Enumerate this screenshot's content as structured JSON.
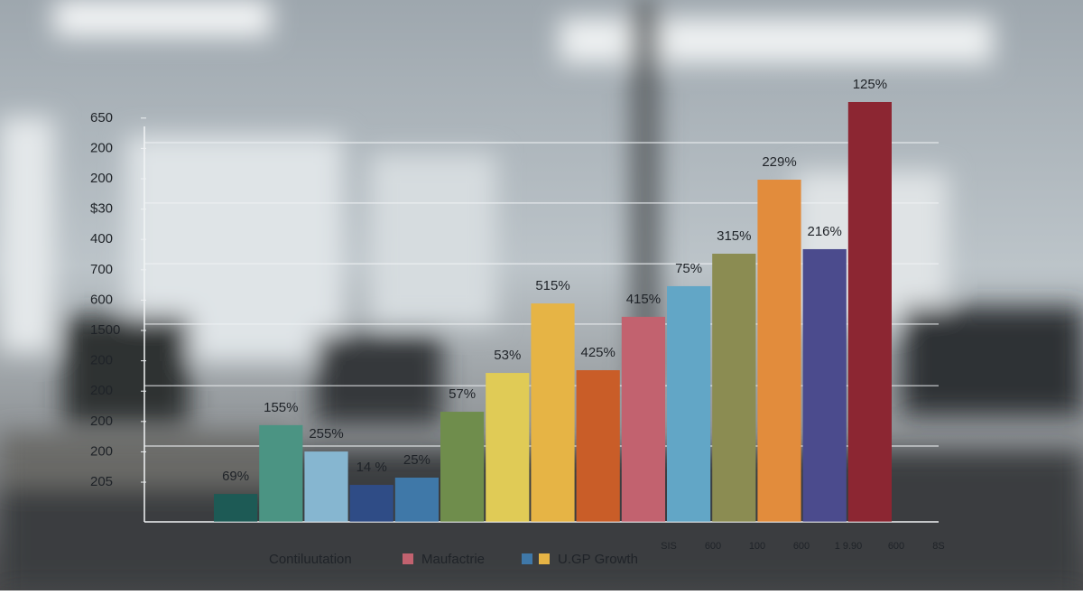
{
  "chart_data": {
    "type": "bar",
    "values": [
      0.61,
      2.88,
      2.01,
      0.91,
      1.15,
      3.32,
      4.6,
      6.89,
      4.69,
      6.45,
      7.46,
      8.53,
      10.97,
      8.68,
      13.53
    ],
    "colors": [
      "#1d5a55",
      "#4b9483",
      "#86b6d0",
      "#2f4c86",
      "#3f78a8",
      "#6f8d4c",
      "#e0cb56",
      "#e6b445",
      "#c95d28",
      "#c2626f",
      "#62a6c6",
      "#8b8c52",
      "#e28c3c",
      "#4b4b8d",
      "#8c2632"
    ],
    "annotations": [
      "69%",
      "155%",
      "255%",
      "14 %",
      "25%",
      "57%",
      "53%",
      "515%",
      "425%",
      "415%",
      "75%",
      "315%",
      "229%",
      "216%",
      "125%"
    ],
    "ylim": [
      -0.3,
      14
    ],
    "yticks": [
      {
        "value": 1,
        "label": "205"
      },
      {
        "value": 2,
        "label": "200"
      },
      {
        "value": 3,
        "label": "200"
      },
      {
        "value": 4,
        "label": "200"
      },
      {
        "value": 5,
        "label": "200"
      },
      {
        "value": 6,
        "label": "1500"
      },
      {
        "value": 7,
        "label": "600"
      },
      {
        "value": 8,
        "label": "700"
      },
      {
        "value": 9,
        "label": "400"
      },
      {
        "value": 10,
        "label": "$30"
      },
      {
        "value": 11,
        "label": "200"
      },
      {
        "value": 12,
        "label": "200"
      },
      {
        "value": 13,
        "label": "650"
      }
    ],
    "grid_values": [
      2.19,
      4.18,
      6.21,
      8.2,
      10.2,
      12.19
    ],
    "x_labels": [
      "SIS",
      "600",
      "100",
      "600",
      "1 9.90",
      "600",
      "8S"
    ],
    "legend": [
      {
        "name": "Contiluutation",
        "colors": []
      },
      {
        "name": "Maufactrie",
        "colors": [
          "#c2626f"
        ]
      },
      {
        "name": "U.GP Growth",
        "colors": [
          "#3f78a8",
          "#e6b445"
        ]
      }
    ]
  }
}
